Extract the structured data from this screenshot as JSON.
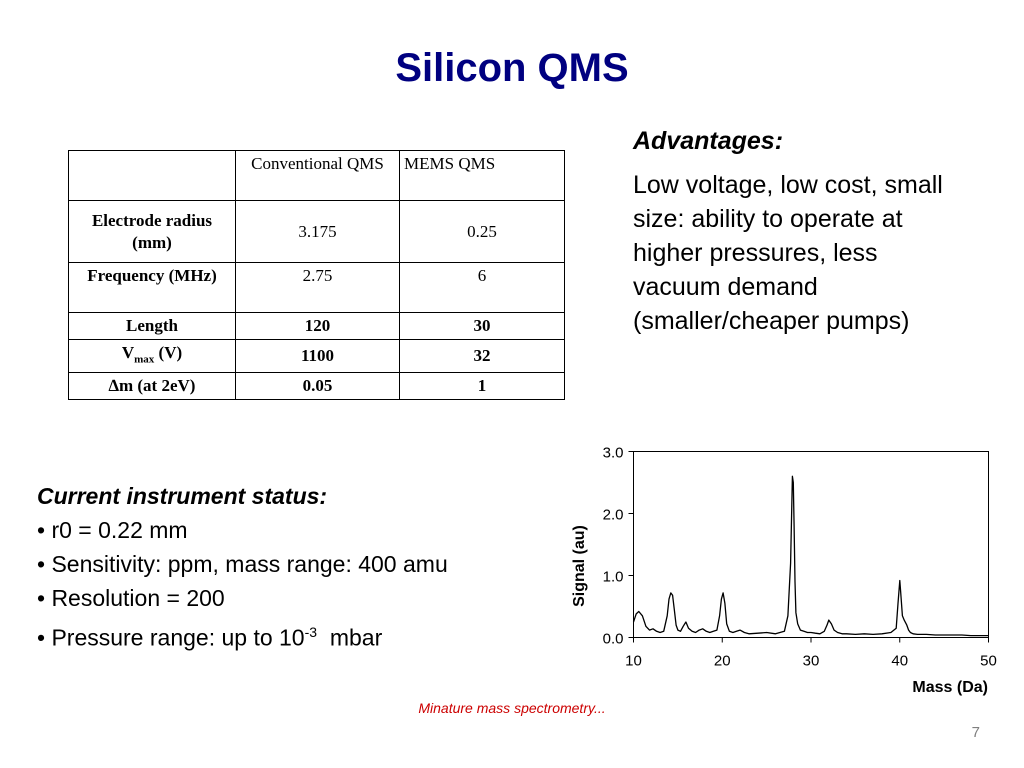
{
  "slide": {
    "title": "Silicon QMS",
    "title_color": "#000080",
    "caption": "Minature mass spectrometry...",
    "caption_color": "#cc0000",
    "page_number": "7"
  },
  "table": {
    "headers": [
      "",
      "Conventional QMS",
      "MEMS QMS"
    ],
    "rows": [
      {
        "label": "Electrode radius (mm)",
        "conventional": "3.175",
        "mems": "0.25"
      },
      {
        "label": "Frequency (MHz)",
        "conventional": "2.75",
        "mems": "6"
      },
      {
        "label": "Length",
        "conventional": "120",
        "mems": "30"
      },
      {
        "label_main": "V",
        "label_sub": "max",
        "label_tail": " (V)",
        "conventional": "1100",
        "mems": "32"
      },
      {
        "label": "∆m (at 2eV)",
        "conventional": "0.05",
        "mems": "1"
      }
    ]
  },
  "advantages": {
    "heading": "Advantages:",
    "text": "Low voltage, low cost, small size: ability to operate at higher pressures, less vacuum demand (smaller/cheaper pumps)"
  },
  "status": {
    "heading": "Current instrument status:",
    "items": [
      "• r0 = 0.22 mm",
      "• Sensitivity: ppm, mass range: 400 amu",
      "• Resolution = 200"
    ],
    "pressure_prefix": "• Pressure range: up to 10",
    "pressure_exponent": "-3",
    "pressure_suffix": "  mbar"
  },
  "chart_data": {
    "type": "line",
    "title": "",
    "xlabel": "Mass (Da)",
    "ylabel": "Signal (au)",
    "xlim": [
      10,
      50
    ],
    "ylim": [
      0.0,
      3.0
    ],
    "x_ticks": [
      10,
      20,
      30,
      40,
      50
    ],
    "x_tick_labels": [
      "10",
      "20",
      "30",
      "40",
      "50"
    ],
    "y_ticks": [
      0,
      1,
      2,
      3
    ],
    "y_tick_labels": [
      "0.0",
      "1.0",
      "2.0",
      "3.0"
    ],
    "grid": false,
    "series": [
      {
        "color": "#000000",
        "x": [
          10.0,
          10.3,
          10.6,
          11.0,
          11.4,
          11.8,
          12.2,
          12.6,
          13.0,
          13.4,
          13.8,
          14.0,
          14.2,
          14.4,
          14.6,
          14.8,
          15.0,
          15.3,
          15.6,
          15.9,
          16.2,
          16.6,
          17.0,
          17.4,
          17.8,
          18.2,
          18.6,
          19.0,
          19.4,
          19.7,
          19.9,
          20.1,
          20.3,
          20.5,
          20.8,
          21.2,
          21.6,
          22.0,
          22.5,
          23.0,
          24.0,
          25.0,
          26.0,
          27.0,
          27.4,
          27.7,
          27.9,
          28.0,
          28.1,
          28.2,
          28.3,
          28.5,
          28.8,
          29.2,
          29.6,
          30.0,
          30.5,
          31.0,
          31.5,
          31.8,
          32.0,
          32.3,
          32.6,
          33.0,
          33.5,
          34.0,
          35.0,
          36.0,
          37.0,
          38.0,
          39.0,
          39.6,
          39.8,
          40.0,
          40.1,
          40.3,
          40.5,
          40.8,
          41.0,
          41.2,
          41.5,
          42.0,
          43.0,
          44.0,
          45.0,
          46.0,
          47.0,
          48.0,
          49.0,
          50.0
        ],
        "y": [
          0.25,
          0.38,
          0.42,
          0.35,
          0.18,
          0.12,
          0.14,
          0.1,
          0.08,
          0.1,
          0.35,
          0.62,
          0.72,
          0.68,
          0.45,
          0.2,
          0.12,
          0.1,
          0.18,
          0.25,
          0.15,
          0.1,
          0.08,
          0.12,
          0.14,
          0.1,
          0.08,
          0.1,
          0.12,
          0.35,
          0.62,
          0.72,
          0.55,
          0.22,
          0.1,
          0.08,
          0.1,
          0.12,
          0.08,
          0.06,
          0.07,
          0.08,
          0.06,
          0.1,
          0.35,
          1.2,
          2.6,
          2.5,
          1.8,
          0.9,
          0.4,
          0.22,
          0.12,
          0.1,
          0.08,
          0.08,
          0.07,
          0.06,
          0.1,
          0.2,
          0.28,
          0.22,
          0.12,
          0.08,
          0.06,
          0.06,
          0.05,
          0.06,
          0.05,
          0.06,
          0.08,
          0.15,
          0.55,
          0.92,
          0.75,
          0.35,
          0.28,
          0.2,
          0.12,
          0.08,
          0.06,
          0.05,
          0.05,
          0.04,
          0.04,
          0.04,
          0.04,
          0.03,
          0.03,
          0.03
        ]
      }
    ]
  }
}
